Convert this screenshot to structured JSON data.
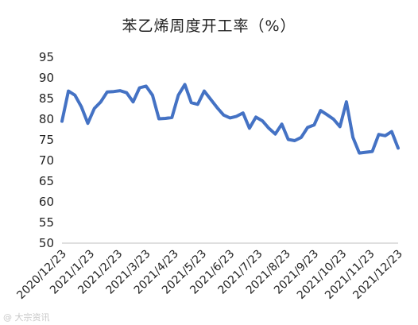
{
  "chart_data": {
    "type": "line",
    "title": "苯乙烯周度开工率（%）",
    "xlabel": "",
    "ylabel": "",
    "ylim": [
      50,
      95
    ],
    "yticks": [
      50,
      55,
      60,
      65,
      70,
      75,
      80,
      85,
      90,
      95
    ],
    "xtick_labels": [
      "2020/12/23",
      "2021/1/23",
      "2021/2/23",
      "2021/3/23",
      "2021/4/23",
      "2021/5/23",
      "2021/6/23",
      "2021/7/23",
      "2021/8/23",
      "2021/9/23",
      "2021/10/23",
      "2021/11/23",
      "2021/12/23"
    ],
    "grid": false,
    "legend": "none",
    "line_color": "#4472C4",
    "series": [
      {
        "values": [
          79.5,
          86.8,
          85.8,
          83.0,
          79.0,
          82.6,
          84.2,
          86.6,
          86.7,
          86.9,
          86.4,
          84.2,
          87.6,
          88.0,
          85.8,
          80.1,
          80.2,
          80.4,
          85.8,
          88.4,
          84.0,
          83.6,
          86.8,
          84.8,
          82.8,
          81.0,
          80.3,
          80.7,
          81.5,
          77.8,
          80.5,
          79.6,
          77.8,
          76.4,
          78.8,
          75.1,
          74.8,
          75.6,
          78.0,
          78.6,
          82.1,
          81.1,
          80.0,
          78.2,
          84.2,
          75.6,
          71.8,
          72.0,
          72.2,
          76.3,
          76.0,
          77.0,
          73.0
        ]
      }
    ]
  },
  "watermark": "@ 大宗资讯"
}
